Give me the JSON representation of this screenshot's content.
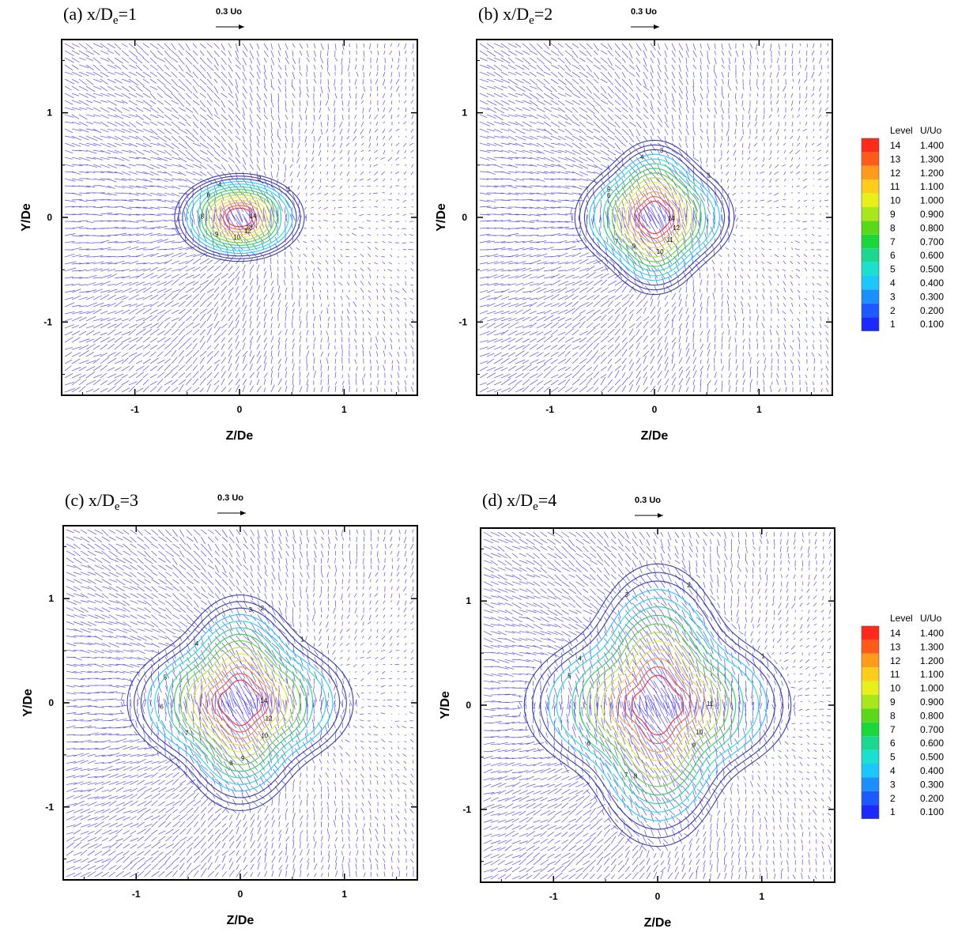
{
  "chart_data": {
    "type": "contour",
    "description_panels": [
      {
        "id": "a",
        "title_prefix": "(a) x/D",
        "title_sub": "e",
        "title_suffix": "=1",
        "ref_vector_label": "0.3 Uo",
        "xlabel": "Z/De",
        "ylabel": "Y/De",
        "xlim": [
          -1.7,
          1.7
        ],
        "ylim": [
          -1.7,
          1.7
        ],
        "xticks": [
          -1,
          0,
          1
        ],
        "yticks": [
          -1,
          0,
          1
        ],
        "contour_shape": {
          "z_half_width": 0.62,
          "y_half_height": 0.42,
          "lobes": 0.0
        },
        "contour_levels_shown": [
          1,
          2,
          4,
          6,
          8,
          9,
          10,
          12,
          13,
          14
        ]
      },
      {
        "id": "b",
        "title_prefix": "(b) x/D",
        "title_sub": "e",
        "title_suffix": "=2",
        "ref_vector_label": "0.3 Uo",
        "xlabel": "Z/De",
        "ylabel": "Y/De",
        "xlim": [
          -1.7,
          1.7
        ],
        "ylim": [
          -1.7,
          1.7
        ],
        "xticks": [
          -1,
          0,
          1
        ],
        "yticks": [
          -1,
          0,
          1
        ],
        "contour_shape": {
          "z_half_width": 0.68,
          "y_half_height": 0.72,
          "lobes": 0.12
        },
        "contour_levels_shown": [
          1,
          3,
          4,
          5,
          6,
          7,
          9,
          10,
          11,
          12,
          14
        ]
      },
      {
        "id": "c",
        "title_prefix": "(c) x/D",
        "title_sub": "e",
        "title_suffix": "=3",
        "ref_vector_label": "0.3 Uo",
        "xlabel": "Z/De",
        "ylabel": "Y/De",
        "xlim": [
          -1.7,
          1.7
        ],
        "ylim": [
          -1.7,
          1.7
        ],
        "xticks": [
          -1,
          0,
          1
        ],
        "yticks": [
          -1,
          0,
          1
        ],
        "contour_shape": {
          "z_half_width": 0.92,
          "y_half_height": 1.0,
          "lobes": 0.18
        },
        "contour_levels_shown": [
          1,
          2,
          3,
          4,
          5,
          6,
          7,
          8,
          9,
          10,
          12,
          14
        ]
      },
      {
        "id": "d",
        "title_prefix": "(d) x/D",
        "title_sub": "e",
        "title_suffix": "=4",
        "ref_vector_label": "0.3 Uo",
        "xlabel": "Z/De",
        "ylabel": "Y/De",
        "xlim": [
          -1.7,
          1.7
        ],
        "ylim": [
          -1.7,
          1.7
        ],
        "xticks": [
          -1,
          0,
          1
        ],
        "yticks": [
          -1,
          0,
          1
        ],
        "contour_shape": {
          "z_half_width": 1.05,
          "y_half_height": 1.3,
          "lobes": 0.22
        },
        "contour_levels_shown": [
          1,
          2,
          3,
          4,
          5,
          6,
          7,
          8,
          9,
          10,
          11
        ]
      }
    ],
    "legend": {
      "header_level": "Level",
      "header_value": "U/Uo",
      "entries": [
        {
          "level": "14",
          "value": "1.400",
          "color": "#ff2a1a"
        },
        {
          "level": "13",
          "value": "1.300",
          "color": "#ff5a1a"
        },
        {
          "level": "12",
          "value": "1.200",
          "color": "#ff9a1a"
        },
        {
          "level": "11",
          "value": "1.100",
          "color": "#ffcc1a"
        },
        {
          "level": "10",
          "value": "1.000",
          "color": "#e8f01a"
        },
        {
          "level": "9",
          "value": "0.900",
          "color": "#a8e81a"
        },
        {
          "level": "8",
          "value": "0.800",
          "color": "#5ad81a"
        },
        {
          "level": "7",
          "value": "0.700",
          "color": "#1ad83a"
        },
        {
          "level": "6",
          "value": "0.600",
          "color": "#1ad890"
        },
        {
          "level": "5",
          "value": "0.500",
          "color": "#1ae0d0"
        },
        {
          "level": "4",
          "value": "0.400",
          "color": "#1ac8ff"
        },
        {
          "level": "3",
          "value": "0.300",
          "color": "#1a90ff"
        },
        {
          "level": "2",
          "value": "0.200",
          "color": "#1a5aff"
        },
        {
          "level": "1",
          "value": "0.100",
          "color": "#1a2aff"
        }
      ]
    },
    "vector_color": "#3b2bff",
    "contour_line_color": "#2a2a9a"
  }
}
